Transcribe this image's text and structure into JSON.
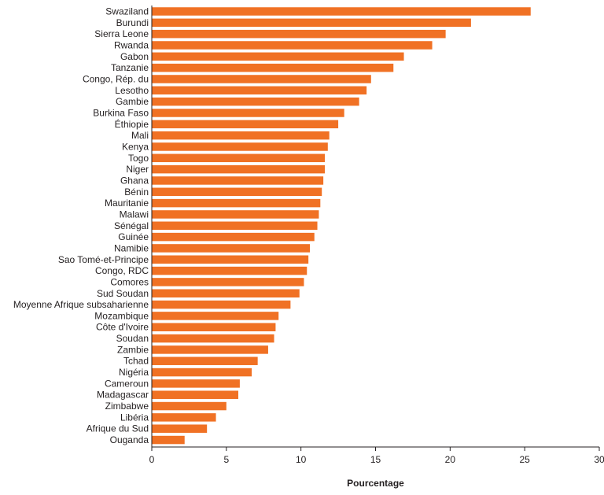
{
  "chart_data": {
    "type": "bar",
    "orientation": "horizontal",
    "title": "",
    "xlabel": "Pourcentage",
    "ylabel": "",
    "xlim": [
      0,
      30
    ],
    "xticks": [
      0,
      5,
      10,
      15,
      20,
      25,
      30
    ],
    "grid": false,
    "legend": "none",
    "bar_color": "#f07124",
    "categories": [
      "Swaziland",
      "Burundi",
      "Sierra Leone",
      "Rwanda",
      "Gabon",
      "Tanzanie",
      "Congo, Rép. du",
      "Lesotho",
      "Gambie",
      "Burkina Faso",
      "Éthiopie",
      "Mali",
      "Kenya",
      "Togo",
      "Niger",
      "Ghana",
      "Bénin",
      "Mauritanie",
      "Malawi",
      "Sénégal",
      "Guinée",
      "Namibie",
      "Sao Tomé-et-Principe",
      "Congo, RDC",
      "Comores",
      "Sud Soudan",
      "Moyenne Afrique subsaharienne",
      "Mozambique",
      "Côte d'Ivoire",
      "Soudan",
      "Zambie",
      "Tchad",
      "Nigéria",
      "Cameroun",
      "Madagascar",
      "Zimbabwe",
      "Libéria",
      "Afrique du Sud",
      "Ouganda"
    ],
    "values": [
      25.4,
      21.4,
      19.7,
      18.8,
      16.9,
      16.2,
      14.7,
      14.4,
      13.9,
      12.9,
      12.5,
      11.9,
      11.8,
      11.6,
      11.6,
      11.5,
      11.4,
      11.3,
      11.2,
      11.1,
      10.9,
      10.6,
      10.5,
      10.4,
      10.2,
      9.9,
      9.3,
      8.5,
      8.3,
      8.2,
      7.8,
      7.1,
      6.7,
      5.9,
      5.8,
      5.0,
      4.3,
      3.7,
      2.2
    ]
  }
}
